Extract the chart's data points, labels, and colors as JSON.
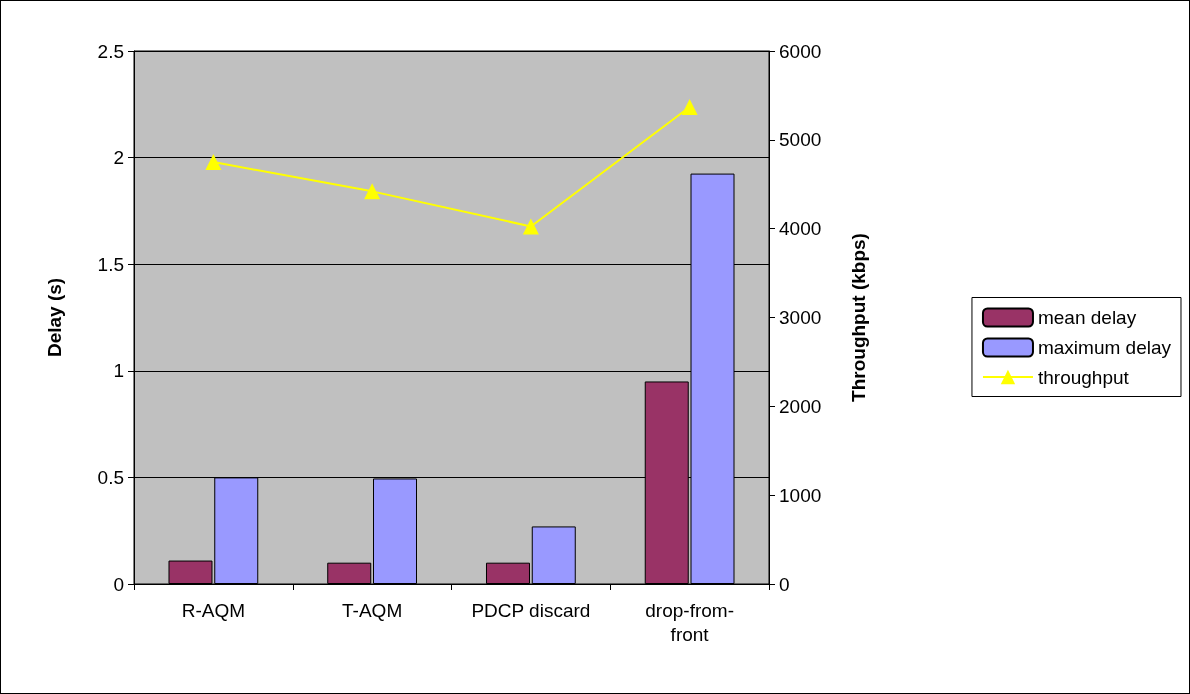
{
  "chart_data": {
    "type": "bar",
    "ylabel": "Delay (s)",
    "y2label": "Throughput (kbps)",
    "categories": [
      "R-AQM",
      "T-AQM",
      "PDCP discard",
      "drop-from-front"
    ],
    "series": [
      {
        "name": "mean delay",
        "color": "#993366",
        "values": [
          0.11,
          0.1,
          0.1,
          0.95
        ]
      },
      {
        "name": "maximum delay",
        "color": "#9999ff",
        "values": [
          0.5,
          0.495,
          0.27,
          1.925
        ]
      },
      {
        "name": "throughput",
        "type": "line",
        "axis": "y2",
        "color": "#ffff00",
        "marker": "triangle",
        "values": [
          4750,
          4420,
          4025,
          5370
        ]
      }
    ],
    "ylim": [
      0,
      2.5
    ],
    "yticks": [
      0,
      0.5,
      1,
      1.5,
      2,
      2.5
    ],
    "y2lim": [
      0,
      6000
    ],
    "y2ticks": [
      0,
      1000,
      2000,
      3000,
      4000,
      5000,
      6000
    ],
    "grid": "y",
    "legend": "right"
  }
}
